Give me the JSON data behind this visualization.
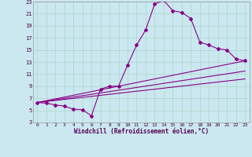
{
  "xlabel": "Windchill (Refroidissement éolien,°C)",
  "bg_color": "#cbe8f0",
  "grid_color": "#b0d8d0",
  "line_color": "#880088",
  "xlim": [
    -0.5,
    23.5
  ],
  "ylim": [
    3,
    23
  ],
  "xticks": [
    0,
    1,
    2,
    3,
    4,
    5,
    6,
    7,
    8,
    9,
    10,
    11,
    12,
    13,
    14,
    15,
    16,
    17,
    18,
    19,
    20,
    21,
    22,
    23
  ],
  "yticks": [
    3,
    5,
    7,
    9,
    11,
    13,
    15,
    17,
    19,
    21,
    23
  ],
  "series": [
    {
      "x": [
        0,
        1,
        2,
        3,
        4,
        5,
        6,
        7,
        8,
        9,
        10,
        11,
        12,
        13,
        14,
        15,
        16,
        17,
        18,
        19,
        20,
        21,
        22,
        23
      ],
      "y": [
        6.3,
        6.2,
        5.9,
        5.7,
        5.2,
        5.1,
        4.1,
        8.5,
        9.0,
        9.0,
        12.5,
        15.8,
        18.3,
        22.6,
        23.2,
        21.5,
        21.2,
        20.2,
        16.3,
        15.8,
        15.2,
        15.0,
        13.5,
        13.2
      ],
      "with_markers": true
    },
    {
      "x": [
        0,
        23
      ],
      "y": [
        6.3,
        13.2
      ],
      "with_markers": false
    },
    {
      "x": [
        0,
        23
      ],
      "y": [
        6.3,
        11.5
      ],
      "with_markers": false
    },
    {
      "x": [
        0,
        23
      ],
      "y": [
        6.3,
        10.2
      ],
      "with_markers": false
    }
  ]
}
